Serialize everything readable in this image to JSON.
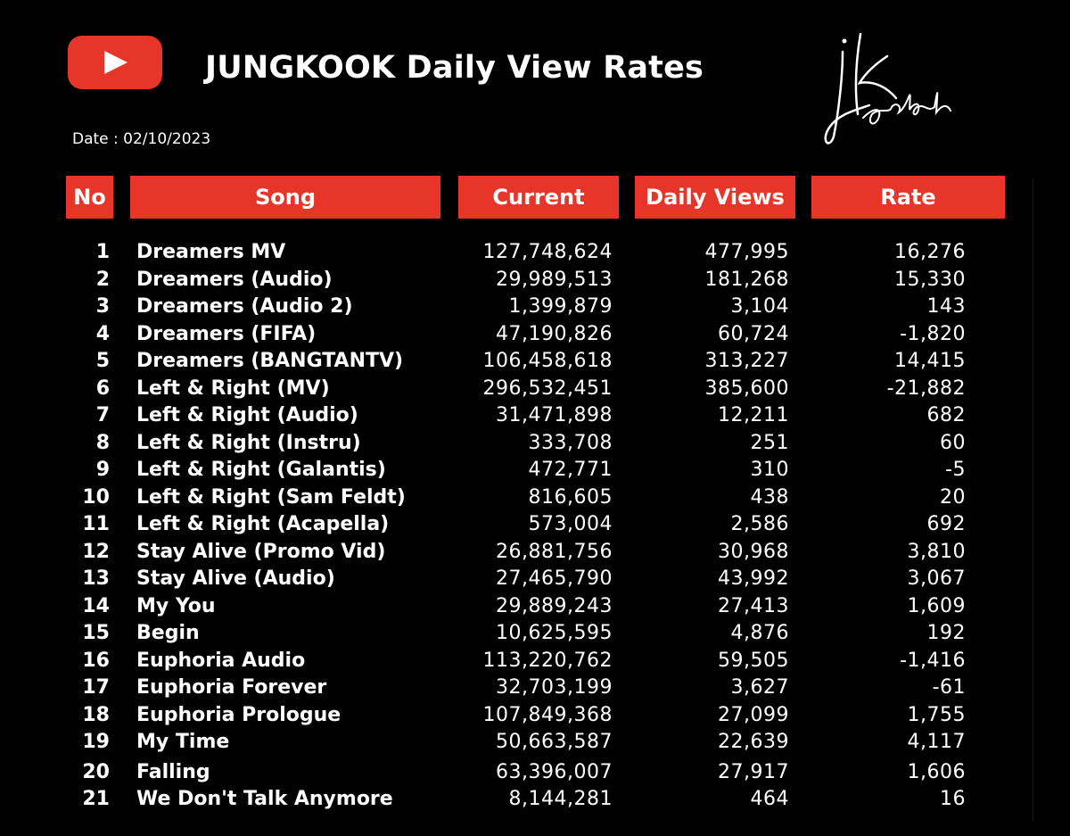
{
  "header": {
    "title": "JUNGKOOK Daily View Rates",
    "date": "Date : 02/10/2023",
    "signature_text": "jk oclock",
    "logo_icon": "youtube-play-icon"
  },
  "columns": {
    "no": "No",
    "song": "Song",
    "current": "Current",
    "daily": "Daily Views",
    "rate": "Rate"
  },
  "colors": {
    "accent": "#e8352a",
    "background": "#000000",
    "text": "#ffffff"
  },
  "rows": [
    {
      "no": "1",
      "song": "Dreamers MV",
      "current": "127,748,624",
      "daily": "477,995",
      "rate": "16,276"
    },
    {
      "no": "2",
      "song": "Dreamers (Audio)",
      "current": "29,989,513",
      "daily": "181,268",
      "rate": "15,330"
    },
    {
      "no": "3",
      "song": "Dreamers (Audio 2)",
      "current": "1,399,879",
      "daily": "3,104",
      "rate": "143"
    },
    {
      "no": "4",
      "song": "Dreamers (FIFA)",
      "current": "47,190,826",
      "daily": "60,724",
      "rate": "-1,820"
    },
    {
      "no": "5",
      "song": "Dreamers (BANGTANTV)",
      "current": "106,458,618",
      "daily": "313,227",
      "rate": "14,415"
    },
    {
      "no": "6",
      "song": "Left & Right (MV)",
      "current": "296,532,451",
      "daily": "385,600",
      "rate": "-21,882"
    },
    {
      "no": "7",
      "song": "Left & Right (Audio)",
      "current": "31,471,898",
      "daily": "12,211",
      "rate": "682"
    },
    {
      "no": "8",
      "song": "Left & Right (Instru)",
      "current": "333,708",
      "daily": "251",
      "rate": "60"
    },
    {
      "no": "9",
      "song": "Left & Right (Galantis)",
      "current": "472,771",
      "daily": "310",
      "rate": "-5"
    },
    {
      "no": "10",
      "song": "Left & Right (Sam Feldt)",
      "current": "816,605",
      "daily": "438",
      "rate": "20"
    },
    {
      "no": "11",
      "song": "Left & Right (Acapella)",
      "current": "573,004",
      "daily": "2,586",
      "rate": "692"
    },
    {
      "no": "12",
      "song": "Stay Alive (Promo Vid)",
      "current": "26,881,756",
      "daily": "30,968",
      "rate": "3,810"
    },
    {
      "no": "13",
      "song": "Stay Alive (Audio)",
      "current": "27,465,790",
      "daily": "43,992",
      "rate": "3,067"
    },
    {
      "no": "14",
      "song": "My You",
      "current": "29,889,243",
      "daily": "27,413",
      "rate": "1,609"
    },
    {
      "no": "15",
      "song": "Begin",
      "current": "10,625,595",
      "daily": "4,876",
      "rate": "192"
    },
    {
      "no": "16",
      "song": "Euphoria Audio",
      "current": "113,220,762",
      "daily": "59,505",
      "rate": "-1,416"
    },
    {
      "no": "17",
      "song": "Euphoria Forever",
      "current": "32,703,199",
      "daily": "3,627",
      "rate": "-61"
    },
    {
      "no": "18",
      "song": "Euphoria Prologue",
      "current": "107,849,368",
      "daily": "27,099",
      "rate": "1,755"
    },
    {
      "no": "19",
      "song": "My Time",
      "current": "50,663,587",
      "daily": "22,639",
      "rate": "4,117"
    },
    {
      "no": "20",
      "song": "Falling",
      "current": "63,396,007",
      "daily": "27,917",
      "rate": "1,606"
    },
    {
      "no": "21",
      "song": "We Don't Talk Anymore",
      "current": "8,144,281",
      "daily": "464",
      "rate": "16"
    }
  ]
}
